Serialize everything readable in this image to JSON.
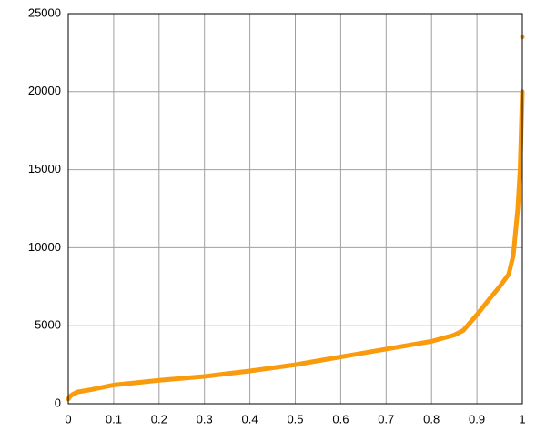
{
  "chart_data": {
    "type": "line",
    "color": "#f99b0c",
    "grid": true,
    "x": [
      0,
      0.005,
      0.01,
      0.02,
      0.05,
      0.1,
      0.15,
      0.2,
      0.3,
      0.4,
      0.5,
      0.6,
      0.7,
      0.8,
      0.85,
      0.87,
      0.9,
      0.93,
      0.95,
      0.97,
      0.98,
      0.99,
      0.995,
      1,
      1,
      1
    ],
    "values": [
      300,
      500,
      600,
      750,
      900,
      1200,
      1350,
      1500,
      1750,
      2100,
      2500,
      3000,
      3500,
      4000,
      4400,
      4700,
      5700,
      6800,
      7500,
      8300,
      9500,
      12500,
      15000,
      20000,
      null,
      23500
    ],
    "xlim": [
      0,
      1
    ],
    "ylim": [
      0,
      25000
    ],
    "xticks": [
      0,
      0.1,
      0.2,
      0.3,
      0.4,
      0.5,
      0.6,
      0.7,
      0.8,
      0.9,
      1
    ],
    "yticks": [
      0,
      5000,
      10000,
      15000,
      20000,
      25000
    ]
  }
}
